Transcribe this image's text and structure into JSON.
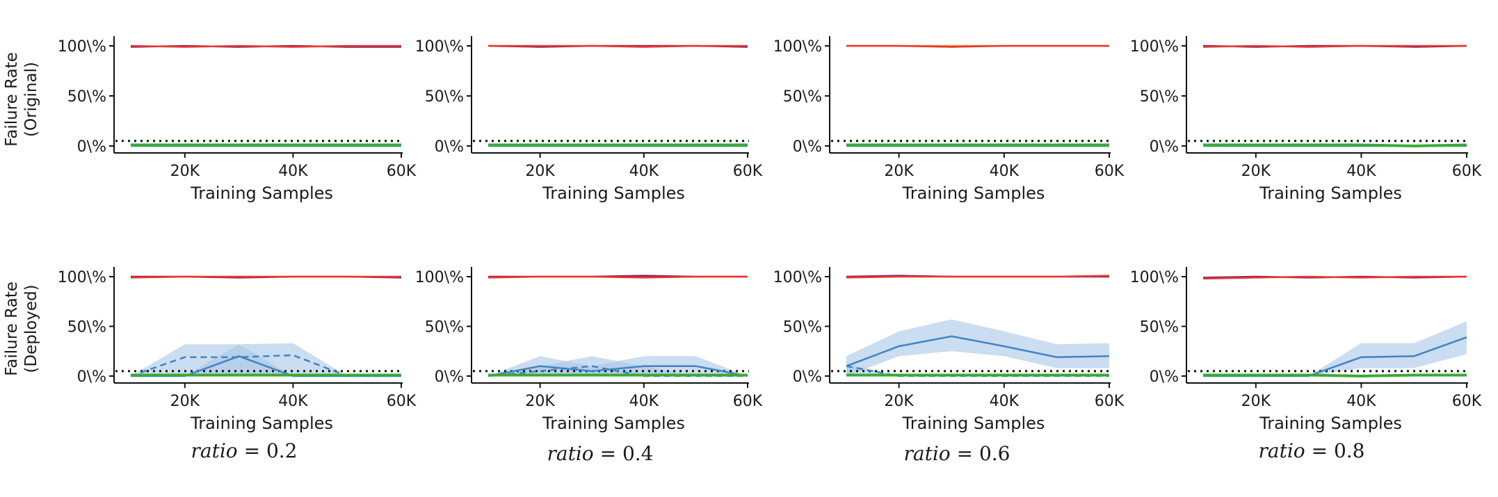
{
  "colors": {
    "red": "#e8392b",
    "purple": "#8e1f6e",
    "orange": "#f08a30",
    "green": "#3aaa35",
    "green_dark": "#2f8a3a",
    "blue": "#3f84c4",
    "blue_band": "#a9c6e6",
    "threshold": "#111111"
  },
  "row_labels": [
    [
      "Failure Rate",
      "(Original)"
    ],
    [
      "Failure Rate",
      "(Deployed)"
    ]
  ],
  "ratio_labels": [
    {
      "name": "ratio",
      "value": "= 0.2"
    },
    {
      "name": "ratio",
      "value": "= 0.4"
    },
    {
      "name": "ratio",
      "value": "= 0.6"
    },
    {
      "name": "ratio",
      "value": "= 0.8"
    }
  ],
  "chart_data": [
    {
      "type": "line",
      "row": 0,
      "col": 0,
      "xlabel": "Training Samples",
      "ylabel": "Failure Rate (Original)",
      "x_ticks": [
        20000,
        40000,
        60000
      ],
      "x_tick_labels": [
        "20K",
        "40K",
        "60K"
      ],
      "y_ticks": [
        0,
        50,
        100
      ],
      "y_tick_labels": [
        "0\\%",
        "50\\%",
        "100\\%"
      ],
      "xlim": [
        10000,
        60000
      ],
      "ylim": [
        0,
        100
      ],
      "threshold": 5,
      "series": [
        {
          "color": "purple",
          "x": [
            10000,
            20000,
            30000,
            40000,
            50000,
            60000
          ],
          "y": [
            99,
            100,
            99,
            100,
            99,
            99
          ]
        },
        {
          "color": "red",
          "x": [
            10000,
            20000,
            30000,
            40000,
            50000,
            60000
          ],
          "y": [
            100,
            99,
            100,
            99,
            100,
            100
          ]
        },
        {
          "color": "blue",
          "x": [
            10000,
            20000,
            30000,
            40000,
            50000,
            60000
          ],
          "y": [
            0,
            0,
            0,
            0,
            0,
            0
          ]
        },
        {
          "color": "green",
          "x": [
            10000,
            20000,
            30000,
            40000,
            50000,
            60000
          ],
          "y": [
            1,
            1,
            1,
            1,
            1,
            1
          ]
        }
      ]
    },
    {
      "type": "line",
      "row": 0,
      "col": 1,
      "xlabel": "Training Samples",
      "ylabel": "",
      "x_ticks": [
        20000,
        40000,
        60000
      ],
      "x_tick_labels": [
        "20K",
        "40K",
        "60K"
      ],
      "y_ticks": [
        0,
        50,
        100
      ],
      "y_tick_labels": [
        "0\\%",
        "50\\%",
        "100\\%"
      ],
      "xlim": [
        10000,
        60000
      ],
      "ylim": [
        0,
        100
      ],
      "threshold": 5,
      "series": [
        {
          "color": "purple",
          "x": [
            10000,
            20000,
            30000,
            40000,
            50000,
            60000
          ],
          "y": [
            100,
            99,
            100,
            100,
            100,
            99
          ]
        },
        {
          "color": "red",
          "x": [
            10000,
            20000,
            30000,
            40000,
            50000,
            60000
          ],
          "y": [
            100,
            100,
            100,
            99,
            100,
            100
          ]
        },
        {
          "color": "blue",
          "x": [
            10000,
            20000,
            30000,
            40000,
            50000,
            60000
          ],
          "y": [
            0,
            0,
            0,
            0,
            0,
            0
          ]
        },
        {
          "color": "green",
          "x": [
            10000,
            20000,
            30000,
            40000,
            50000,
            60000
          ],
          "y": [
            1,
            1,
            1,
            1,
            1,
            1
          ]
        }
      ]
    },
    {
      "type": "line",
      "row": 0,
      "col": 2,
      "xlabel": "Training Samples",
      "ylabel": "",
      "x_ticks": [
        20000,
        40000,
        60000
      ],
      "x_tick_labels": [
        "20K",
        "40K",
        "60K"
      ],
      "y_ticks": [
        0,
        50,
        100
      ],
      "y_tick_labels": [
        "0\\%",
        "50\\%",
        "100\\%"
      ],
      "xlim": [
        10000,
        60000
      ],
      "ylim": [
        0,
        100
      ],
      "threshold": 5,
      "series": [
        {
          "color": "orange",
          "x": [
            10000,
            20000,
            30000,
            40000,
            50000,
            60000
          ],
          "y": [
            100,
            100,
            100,
            100,
            100,
            100
          ]
        },
        {
          "color": "red",
          "x": [
            10000,
            20000,
            30000,
            40000,
            50000,
            60000
          ],
          "y": [
            100,
            100,
            99,
            100,
            100,
            100
          ]
        },
        {
          "color": "blue",
          "x": [
            10000,
            20000,
            30000,
            40000,
            50000,
            60000
          ],
          "y": [
            0,
            0,
            0,
            0,
            0,
            0
          ]
        },
        {
          "color": "green",
          "x": [
            10000,
            20000,
            30000,
            40000,
            50000,
            60000
          ],
          "y": [
            1,
            1,
            1,
            1,
            1,
            1
          ]
        }
      ]
    },
    {
      "type": "line",
      "row": 0,
      "col": 3,
      "xlabel": "Training Samples",
      "ylabel": "",
      "x_ticks": [
        20000,
        40000,
        60000
      ],
      "x_tick_labels": [
        "20K",
        "40K",
        "60K"
      ],
      "y_ticks": [
        0,
        50,
        100
      ],
      "y_tick_labels": [
        "0\\%",
        "50\\%",
        "100\\%"
      ],
      "xlim": [
        10000,
        60000
      ],
      "ylim": [
        0,
        100
      ],
      "threshold": 5,
      "series": [
        {
          "color": "purple",
          "x": [
            10000,
            20000,
            30000,
            40000,
            50000,
            60000
          ],
          "y": [
            100,
            99,
            100,
            100,
            99,
            100
          ]
        },
        {
          "color": "red",
          "x": [
            10000,
            20000,
            30000,
            40000,
            50000,
            60000
          ],
          "y": [
            99,
            100,
            99,
            100,
            100,
            100
          ]
        },
        {
          "color": "blue",
          "x": [
            10000,
            20000,
            30000,
            40000,
            50000,
            60000
          ],
          "y": [
            0,
            0,
            0,
            0,
            0,
            0
          ]
        },
        {
          "color": "green",
          "x": [
            10000,
            20000,
            30000,
            40000,
            50000,
            60000
          ],
          "y": [
            1,
            1,
            1,
            1,
            0,
            1
          ]
        }
      ]
    },
    {
      "type": "line",
      "row": 1,
      "col": 0,
      "xlabel": "Training Samples",
      "ylabel": "Failure Rate (Deployed)",
      "x_ticks": [
        20000,
        40000,
        60000
      ],
      "x_tick_labels": [
        "20K",
        "40K",
        "60K"
      ],
      "y_ticks": [
        0,
        50,
        100
      ],
      "y_tick_labels": [
        "0\\%",
        "50\\%",
        "100\\%"
      ],
      "xlim": [
        10000,
        60000
      ],
      "ylim": [
        0,
        100
      ],
      "threshold": 5,
      "series": [
        {
          "color": "purple",
          "x": [
            10000,
            20000,
            30000,
            40000,
            50000,
            60000
          ],
          "y": [
            100,
            100,
            99,
            100,
            100,
            99
          ]
        },
        {
          "color": "red",
          "x": [
            10000,
            20000,
            30000,
            40000,
            50000,
            60000
          ],
          "y": [
            99,
            100,
            100,
            100,
            100,
            100
          ]
        },
        {
          "color": "blue",
          "style": "solid",
          "x": [
            10000,
            20000,
            30000,
            40000,
            50000,
            60000
          ],
          "y": [
            0,
            0,
            20,
            0,
            0,
            0
          ],
          "band_low": [
            0,
            0,
            0,
            0,
            0,
            0
          ],
          "band_high": [
            0,
            0,
            32,
            0,
            0,
            0
          ]
        },
        {
          "color": "blue",
          "style": "dashed",
          "x": [
            10000,
            20000,
            30000,
            40000,
            50000,
            60000
          ],
          "y": [
            0,
            19,
            19,
            21,
            0,
            0
          ],
          "band_low": [
            0,
            0,
            0,
            0,
            0,
            0
          ],
          "band_high": [
            0,
            32,
            32,
            33,
            0,
            0
          ]
        },
        {
          "color": "green",
          "x": [
            10000,
            20000,
            30000,
            40000,
            50000,
            60000
          ],
          "y": [
            1,
            1,
            1,
            1,
            1,
            1
          ]
        }
      ]
    },
    {
      "type": "line",
      "row": 1,
      "col": 1,
      "xlabel": "Training Samples",
      "ylabel": "",
      "x_ticks": [
        20000,
        40000,
        60000
      ],
      "x_tick_labels": [
        "20K",
        "40K",
        "60K"
      ],
      "y_ticks": [
        0,
        50,
        100
      ],
      "y_tick_labels": [
        "0\\%",
        "50\\%",
        "100\\%"
      ],
      "xlim": [
        10000,
        60000
      ],
      "ylim": [
        0,
        100
      ],
      "threshold": 5,
      "series": [
        {
          "color": "purple",
          "x": [
            10000,
            20000,
            30000,
            40000,
            50000,
            60000
          ],
          "y": [
            100,
            100,
            100,
            101,
            100,
            100
          ]
        },
        {
          "color": "red",
          "x": [
            10000,
            20000,
            30000,
            40000,
            50000,
            60000
          ],
          "y": [
            99,
            100,
            100,
            99,
            100,
            100
          ]
        },
        {
          "color": "blue",
          "style": "solid",
          "x": [
            10000,
            20000,
            30000,
            40000,
            50000,
            60000
          ],
          "y": [
            0,
            10,
            5,
            10,
            10,
            0
          ],
          "band_low": [
            0,
            0,
            0,
            0,
            0,
            0
          ],
          "band_high": [
            0,
            20,
            10,
            20,
            20,
            0
          ]
        },
        {
          "color": "blue",
          "style": "dashed",
          "x": [
            10000,
            20000,
            30000,
            40000,
            50000,
            60000
          ],
          "y": [
            0,
            5,
            10,
            0,
            0,
            0
          ],
          "band_low": [
            0,
            0,
            0,
            0,
            0,
            0
          ],
          "band_high": [
            0,
            10,
            20,
            10,
            0,
            0
          ]
        },
        {
          "color": "green",
          "x": [
            10000,
            20000,
            30000,
            40000,
            50000,
            60000
          ],
          "y": [
            1,
            1,
            1,
            1,
            1,
            1
          ]
        }
      ]
    },
    {
      "type": "line",
      "row": 1,
      "col": 2,
      "xlabel": "Training Samples",
      "ylabel": "",
      "x_ticks": [
        20000,
        40000,
        60000
      ],
      "x_tick_labels": [
        "20K",
        "40K",
        "60K"
      ],
      "y_ticks": [
        0,
        50,
        100
      ],
      "y_tick_labels": [
        "0\\%",
        "50\\%",
        "100\\%"
      ],
      "xlim": [
        10000,
        60000
      ],
      "ylim": [
        0,
        100
      ],
      "threshold": 5,
      "series": [
        {
          "color": "purple",
          "x": [
            10000,
            20000,
            30000,
            40000,
            50000,
            60000
          ],
          "y": [
            100,
            101,
            100,
            100,
            100,
            100
          ]
        },
        {
          "color": "red",
          "x": [
            10000,
            20000,
            30000,
            40000,
            50000,
            60000
          ],
          "y": [
            99,
            100,
            100,
            100,
            100,
            101
          ]
        },
        {
          "color": "blue",
          "style": "solid",
          "x": [
            10000,
            20000,
            30000,
            40000,
            50000,
            60000
          ],
          "y": [
            10,
            30,
            40,
            30,
            19,
            20
          ],
          "band_low": [
            0,
            20,
            25,
            20,
            8,
            8
          ],
          "band_high": [
            20,
            45,
            57,
            45,
            32,
            33
          ]
        },
        {
          "color": "blue",
          "style": "dashed",
          "x": [
            10000,
            20000,
            30000,
            40000,
            50000,
            60000
          ],
          "y": [
            10,
            0,
            0,
            0,
            0,
            0
          ],
          "band_low": [
            0,
            0,
            0,
            0,
            0,
            0
          ],
          "band_high": [
            12,
            0,
            0,
            0,
            0,
            0
          ]
        },
        {
          "color": "green",
          "x": [
            10000,
            20000,
            30000,
            40000,
            50000,
            60000
          ],
          "y": [
            1,
            1,
            1,
            1,
            1,
            1
          ]
        }
      ]
    },
    {
      "type": "line",
      "row": 1,
      "col": 3,
      "xlabel": "Training Samples",
      "ylabel": "",
      "x_ticks": [
        20000,
        40000,
        60000
      ],
      "x_tick_labels": [
        "20K",
        "40K",
        "60K"
      ],
      "y_ticks": [
        0,
        50,
        100
      ],
      "y_tick_labels": [
        "0\\%",
        "50\\%",
        "100\\%"
      ],
      "xlim": [
        10000,
        60000
      ],
      "ylim": [
        0,
        100
      ],
      "threshold": 5,
      "series": [
        {
          "color": "purple",
          "x": [
            10000,
            20000,
            30000,
            40000,
            50000,
            60000
          ],
          "y": [
            99,
            100,
            99,
            100,
            99,
            100
          ]
        },
        {
          "color": "red",
          "x": [
            10000,
            20000,
            30000,
            40000,
            50000,
            60000
          ],
          "y": [
            98,
            99,
            100,
            99,
            100,
            100
          ]
        },
        {
          "color": "blue",
          "style": "solid",
          "x": [
            10000,
            20000,
            30000,
            40000,
            50000,
            60000
          ],
          "y": [
            0,
            0,
            0,
            19,
            20,
            39
          ],
          "band_low": [
            0,
            0,
            0,
            8,
            8,
            22
          ],
          "band_high": [
            0,
            0,
            0,
            33,
            33,
            55
          ]
        },
        {
          "color": "green",
          "x": [
            10000,
            20000,
            30000,
            40000,
            50000,
            60000
          ],
          "y": [
            1,
            1,
            1,
            0,
            1,
            1
          ]
        }
      ]
    }
  ]
}
